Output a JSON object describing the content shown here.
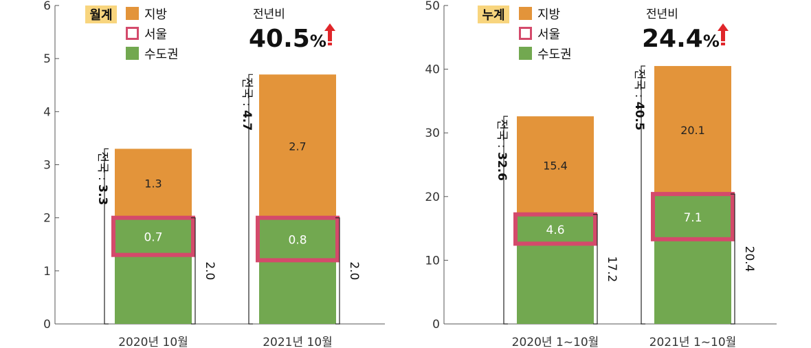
{
  "colors": {
    "regional": "#e3943a",
    "capital_area": "#72a850",
    "seoul_outline": "#d44a6b",
    "badge_bg": "#f8d57e",
    "arrow": "#e0262a",
    "axis": "#555555",
    "bracket": "#222222"
  },
  "chart_data": [
    {
      "type": "bar",
      "stacked": true,
      "badge": "월계",
      "legend": [
        {
          "label": "지방",
          "kind": "fill",
          "color": "#e3943a"
        },
        {
          "label": "서울",
          "kind": "outline",
          "color": "#d44a6b"
        },
        {
          "label": "수도권",
          "kind": "fill",
          "color": "#72a850"
        }
      ],
      "yoy_label": "전년비",
      "yoy_value": "40.5",
      "yoy_unit": "%",
      "ylim": [
        0,
        6
      ],
      "yticks": [
        0,
        1,
        2,
        3,
        4,
        5,
        6
      ],
      "ytick_labels": [
        "0",
        "1",
        "2",
        "3",
        "4",
        "5",
        "6"
      ],
      "categories": [
        "2020년 10월",
        "2021년 10월"
      ],
      "series": [
        {
          "name": "수도권",
          "values": [
            2.0,
            2.0
          ]
        },
        {
          "name": "지방",
          "values": [
            1.3,
            2.7
          ]
        }
      ],
      "seoul": [
        0.7,
        0.8
      ],
      "totals": [
        3.3,
        4.7
      ],
      "total_prefix": "전국 : ",
      "total_labels": [
        "3.3",
        "4.7"
      ],
      "capital_labels": [
        "2.0",
        "2.0"
      ],
      "seoul_labels": [
        "0.7",
        "0.8"
      ],
      "regional_labels": [
        "1.3",
        "2.7"
      ]
    },
    {
      "type": "bar",
      "stacked": true,
      "badge": "누계",
      "legend": [
        {
          "label": "지방",
          "kind": "fill",
          "color": "#e3943a"
        },
        {
          "label": "서울",
          "kind": "outline",
          "color": "#d44a6b"
        },
        {
          "label": "수도권",
          "kind": "fill",
          "color": "#72a850"
        }
      ],
      "yoy_label": "전년비",
      "yoy_value": "24.4",
      "yoy_unit": "%",
      "ylim": [
        0,
        50
      ],
      "yticks": [
        0,
        10,
        20,
        30,
        40,
        50
      ],
      "ytick_labels": [
        "0",
        "10",
        "20",
        "30",
        "40",
        "50"
      ],
      "categories": [
        "2020년 1~10월",
        "2021년 1~10월"
      ],
      "series": [
        {
          "name": "수도권",
          "values": [
            17.2,
            20.4
          ]
        },
        {
          "name": "지방",
          "values": [
            15.4,
            20.1
          ]
        }
      ],
      "seoul": [
        4.6,
        7.1
      ],
      "totals": [
        32.6,
        40.5
      ],
      "total_prefix": "전국 : ",
      "total_labels": [
        "32.6",
        "40.5"
      ],
      "capital_labels": [
        "17.2",
        "20.4"
      ],
      "seoul_labels": [
        "4.6",
        "7.1"
      ],
      "regional_labels": [
        "15.4",
        "20.1"
      ]
    }
  ]
}
